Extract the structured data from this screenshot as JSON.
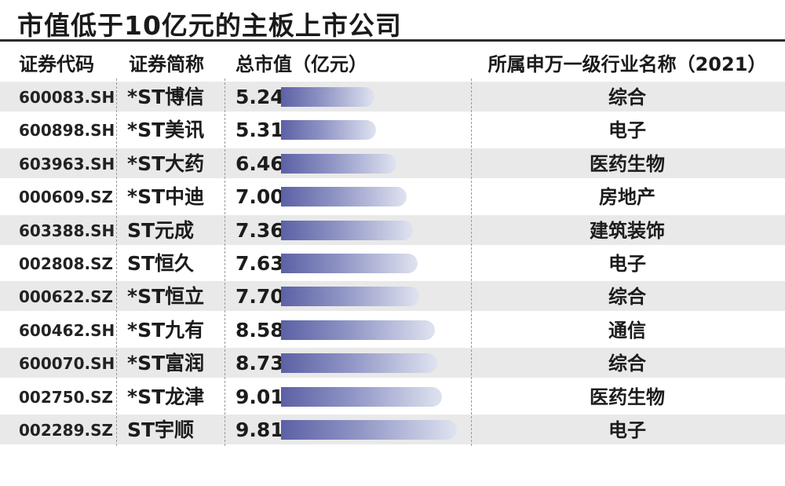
{
  "title": "市值低于10亿元的主板上市公司",
  "headers": {
    "code": "证券代码",
    "name": "证券简称",
    "cap": "总市值（亿元）",
    "industry": "所属申万一级行业名称（2021）"
  },
  "colors": {
    "bar_start": "#5b61a4",
    "bar_end": "#dfe3f0",
    "row_shade": "#e9e9e9"
  },
  "chart_data": {
    "type": "bar",
    "title": "市值低于10亿元的主板上市公司",
    "value_label": "总市值（亿元）",
    "categories": [
      "*ST博信",
      "*ST美讯",
      "*ST大药",
      "*ST中迪",
      "ST元成",
      "ST恒久",
      "*ST恒立",
      "*ST九有",
      "*ST富润",
      "*ST龙津",
      "ST宇顺"
    ],
    "values": [
      5.24,
      5.31,
      6.46,
      7.0,
      7.36,
      7.63,
      7.7,
      8.58,
      8.73,
      9.01,
      9.81
    ],
    "rows": [
      {
        "code": "600083.SH",
        "name": "*ST博信",
        "cap": "5.24",
        "industry": "综合"
      },
      {
        "code": "600898.SH",
        "name": "*ST美讯",
        "cap": "5.31",
        "industry": "电子"
      },
      {
        "code": "603963.SH",
        "name": "*ST大药",
        "cap": "6.46",
        "industry": "医药生物"
      },
      {
        "code": "000609.SZ",
        "name": "*ST中迪",
        "cap": "7.00",
        "industry": "房地产"
      },
      {
        "code": "603388.SH",
        "name": "ST元成",
        "cap": "7.36",
        "industry": "建筑装饰"
      },
      {
        "code": "002808.SZ",
        "name": "ST恒久",
        "cap": "7.63",
        "industry": "电子"
      },
      {
        "code": "000622.SZ",
        "name": "*ST恒立",
        "cap": "7.70",
        "industry": "综合"
      },
      {
        "code": "600462.SH",
        "name": "*ST九有",
        "cap": "8.58",
        "industry": "通信"
      },
      {
        "code": "600070.SH",
        "name": "*ST富润",
        "cap": "8.73",
        "industry": "综合"
      },
      {
        "code": "002750.SZ",
        "name": "*ST龙津",
        "cap": "9.01",
        "industry": "医药生物"
      },
      {
        "code": "002289.SZ",
        "name": "ST宇顺",
        "cap": "9.81",
        "industry": "电子"
      }
    ]
  }
}
